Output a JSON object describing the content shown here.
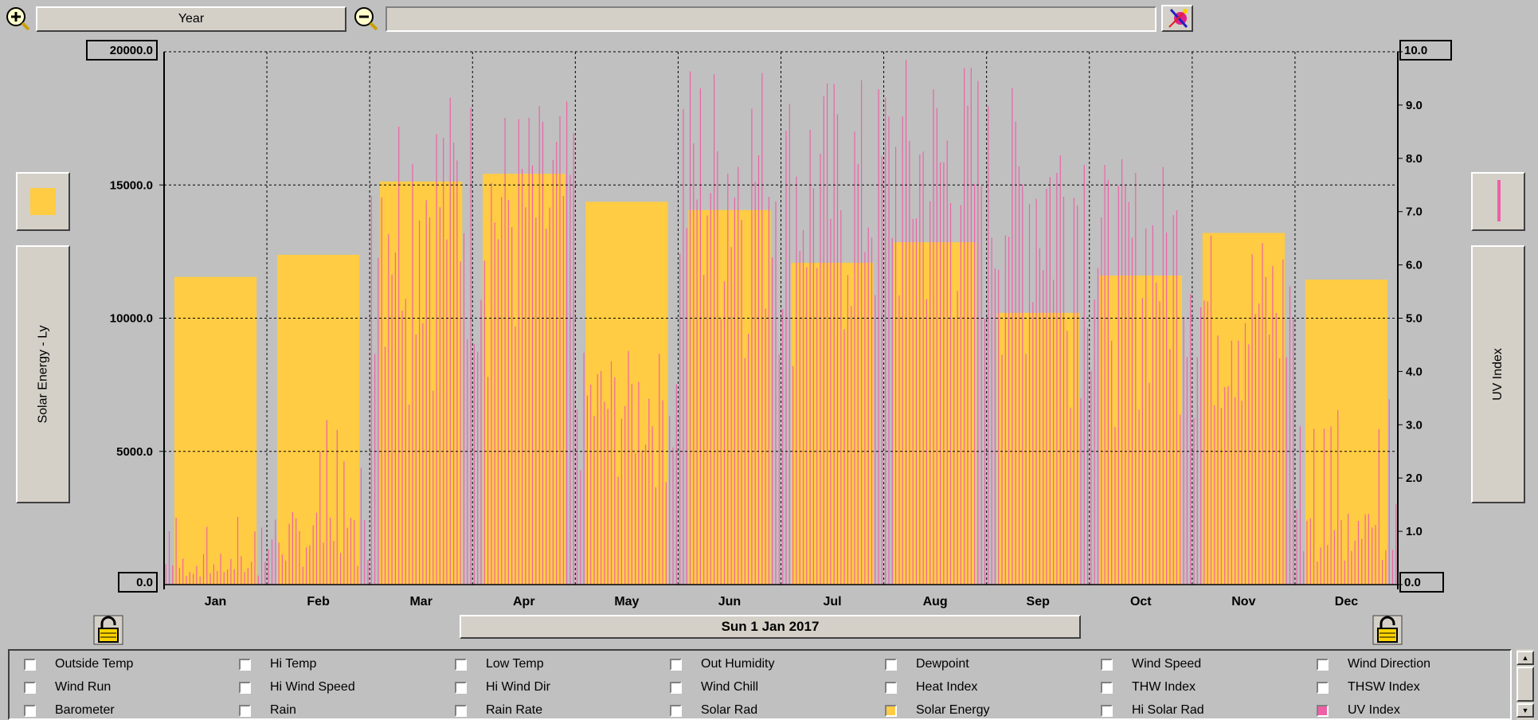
{
  "toolbar": {
    "period_label": "Year",
    "zoom_in_icon": "zoom-in-icon",
    "zoom_out_icon": "zoom-out-icon",
    "color_picker_icon": "color-picker-icon"
  },
  "left_axis": {
    "top_value": "20000.0",
    "bottom_value": "0.0",
    "label": "Solar Energy - Ly",
    "color": "#ffcc44"
  },
  "right_axis": {
    "top_value": "10.0",
    "bottom_value": "0.0",
    "label": "UV Index",
    "color": "#ef5fa6"
  },
  "date_label": "Sun 1 Jan 2017",
  "legend": [
    {
      "label": "Outside Temp",
      "checked": false,
      "color": null
    },
    {
      "label": "Hi Temp",
      "checked": false,
      "color": null
    },
    {
      "label": "Low Temp",
      "checked": false,
      "color": null
    },
    {
      "label": "Out Humidity",
      "checked": false,
      "color": null
    },
    {
      "label": "Dewpoint",
      "checked": false,
      "color": null
    },
    {
      "label": "Wind Speed",
      "checked": false,
      "color": null
    },
    {
      "label": "Wind Direction",
      "checked": false,
      "color": null
    },
    {
      "label": "Wind Run",
      "checked": false,
      "color": null
    },
    {
      "label": "Hi Wind Speed",
      "checked": false,
      "color": null
    },
    {
      "label": "Hi Wind Dir",
      "checked": false,
      "color": null
    },
    {
      "label": "Wind Chill",
      "checked": false,
      "color": null
    },
    {
      "label": "Heat Index",
      "checked": false,
      "color": null
    },
    {
      "label": "THW Index",
      "checked": false,
      "color": null
    },
    {
      "label": "THSW Index",
      "checked": false,
      "color": null
    },
    {
      "label": "Barometer",
      "checked": false,
      "color": null
    },
    {
      "label": "Rain",
      "checked": false,
      "color": null
    },
    {
      "label": "Rain Rate",
      "checked": false,
      "color": null
    },
    {
      "label": "Solar Rad",
      "checked": false,
      "color": null
    },
    {
      "label": "Solar Energy",
      "checked": true,
      "color": "#ffcc44"
    },
    {
      "label": "Hi Solar Rad",
      "checked": false,
      "color": null
    },
    {
      "label": "UV Index",
      "checked": true,
      "color": "#ef5fa6"
    }
  ],
  "chart_data": {
    "type": "bar",
    "categories": [
      "Jan",
      "Feb",
      "Mar",
      "Apr",
      "May",
      "Jun",
      "Jul",
      "Aug",
      "Sep",
      "Oct",
      "Nov",
      "Dec"
    ],
    "series": [
      {
        "name": "Solar Energy",
        "axis": "left",
        "type": "bar",
        "values": [
          11550,
          12380,
          15130,
          15420,
          14370,
          14060,
          12080,
          12850,
          10200,
          11600,
          13200,
          11450
        ]
      },
      {
        "name": "UV Index",
        "axis": "right",
        "type": "daily-spikes",
        "monthly_peak": [
          1.3,
          3.1,
          9.4,
          9.1,
          4.4,
          10.0,
          9.6,
          10.0,
          9.4,
          8.0,
          6.7,
          3.5
        ]
      }
    ],
    "left_yticks": [
      "0.0",
      "5000.0",
      "10000.0",
      "15000.0",
      "20000.0"
    ],
    "right_yticks": [
      "0.0",
      "1.0",
      "2.0",
      "3.0",
      "4.0",
      "5.0",
      "6.0",
      "7.0",
      "8.0",
      "9.0",
      "10.0"
    ],
    "left_ylim": [
      0,
      20000
    ],
    "right_ylim": [
      0,
      10
    ],
    "grid": true
  }
}
